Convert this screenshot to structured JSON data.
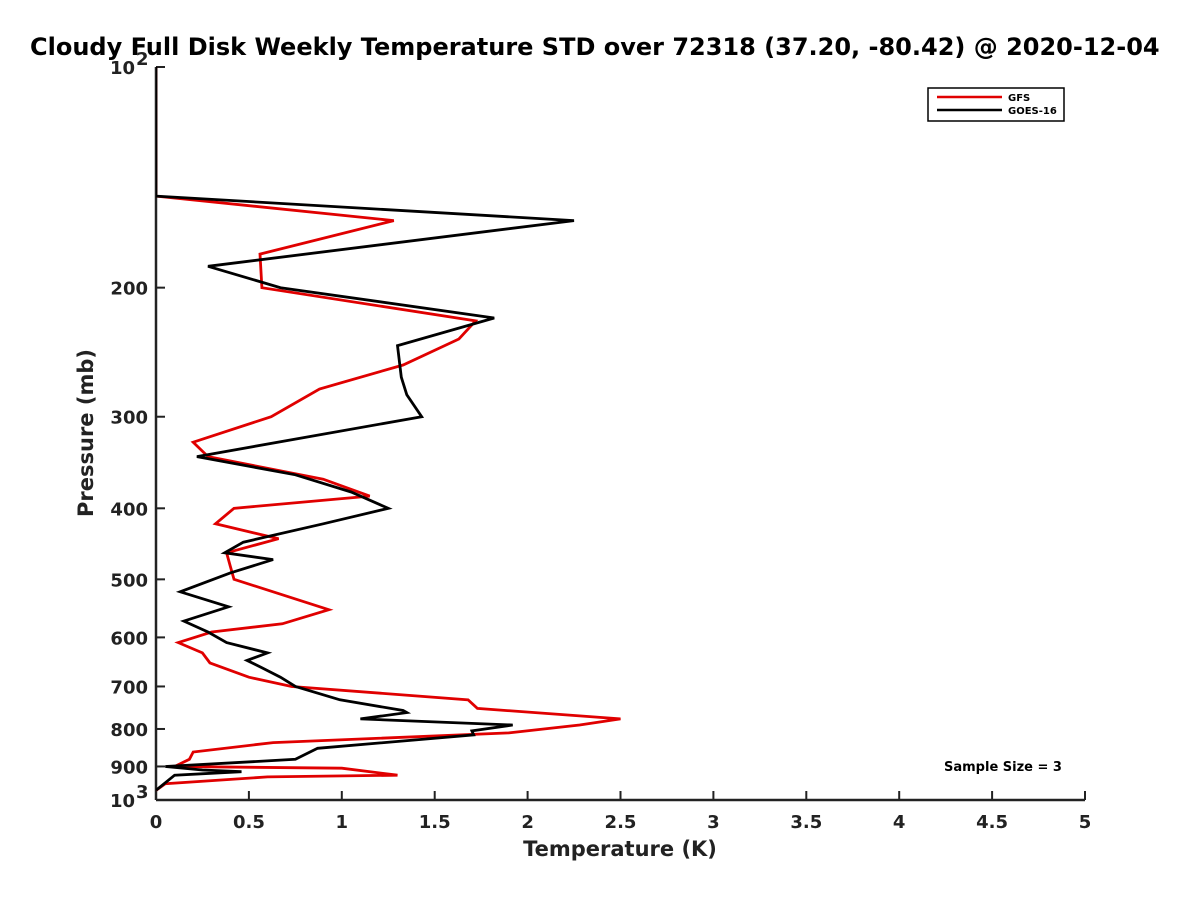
{
  "chart_data": {
    "type": "line",
    "title": "Cloudy Full Disk Weekly Temperature STD over 72318 (37.20, -80.42) @ 2020-12-04",
    "xlabel": "Temperature (K)",
    "ylabel": "Pressure (mb)",
    "xlim": [
      0,
      5
    ],
    "ylim": [
      100,
      1000
    ],
    "yscale": "log",
    "y_reversed": true,
    "x_ticks": [
      "0",
      "0.5",
      "1",
      "1.5",
      "2",
      "2.5",
      "3",
      "3.5",
      "4",
      "4.5",
      "5"
    ],
    "y_ticks": [
      {
        "value": 100,
        "base": "10",
        "exp": "2"
      },
      {
        "value": 200,
        "label": "200"
      },
      {
        "value": 300,
        "label": "300"
      },
      {
        "value": 400,
        "label": "400"
      },
      {
        "value": 500,
        "label": "500"
      },
      {
        "value": 600,
        "label": "600"
      },
      {
        "value": 700,
        "label": "700"
      },
      {
        "value": 800,
        "label": "800"
      },
      {
        "value": 900,
        "label": "900"
      },
      {
        "value": 1000,
        "base": "10",
        "exp": "3"
      }
    ],
    "legend_position": "top-right",
    "annotation": "Sample Size = 3",
    "series": [
      {
        "name": "GFS",
        "color": "#e00000",
        "points": [
          [
            0,
            100
          ],
          [
            0,
            125
          ],
          [
            0,
            150
          ],
          [
            1.28,
            162
          ],
          [
            0.56,
            180
          ],
          [
            0.57,
            200
          ],
          [
            1.72,
            222
          ],
          [
            1.63,
            235
          ],
          [
            1.33,
            255
          ],
          [
            0.88,
            275
          ],
          [
            0.62,
            300
          ],
          [
            0.2,
            325
          ],
          [
            0.28,
            340
          ],
          [
            0.9,
            365
          ],
          [
            1.15,
            385
          ],
          [
            0.42,
            400
          ],
          [
            0.32,
            420
          ],
          [
            0.66,
            440
          ],
          [
            0.38,
            460
          ],
          [
            0.4,
            480
          ],
          [
            0.42,
            500
          ],
          [
            0.93,
            550
          ],
          [
            0.68,
            575
          ],
          [
            0.3,
            590
          ],
          [
            0.12,
            610
          ],
          [
            0.25,
            630
          ],
          [
            0.29,
            650
          ],
          [
            0.5,
            680
          ],
          [
            0.73,
            700
          ],
          [
            1.68,
            730
          ],
          [
            1.73,
            750
          ],
          [
            2.5,
            775
          ],
          [
            2.28,
            790
          ],
          [
            1.9,
            810
          ],
          [
            0.63,
            835
          ],
          [
            0.2,
            860
          ],
          [
            0.18,
            880
          ],
          [
            0.1,
            900
          ],
          [
            1.0,
            905
          ],
          [
            1.3,
            925
          ],
          [
            0.6,
            930
          ],
          [
            0.05,
            950
          ],
          [
            0,
            970
          ]
        ]
      },
      {
        "name": "GOES-16",
        "color": "#000000",
        "points": [
          [
            0,
            100
          ],
          [
            0,
            125
          ],
          [
            0,
            150
          ],
          [
            2.25,
            162
          ],
          [
            0.28,
            187
          ],
          [
            0.67,
            200
          ],
          [
            1.82,
            220
          ],
          [
            1.3,
            240
          ],
          [
            1.32,
            265
          ],
          [
            1.35,
            280
          ],
          [
            1.43,
            300
          ],
          [
            0.22,
            340
          ],
          [
            0.75,
            360
          ],
          [
            1.05,
            380
          ],
          [
            1.25,
            400
          ],
          [
            0.9,
            420
          ],
          [
            0.47,
            445
          ],
          [
            0.37,
            460
          ],
          [
            0.63,
            470
          ],
          [
            0.4,
            490
          ],
          [
            0.13,
            520
          ],
          [
            0.39,
            545
          ],
          [
            0.15,
            570
          ],
          [
            0.28,
            590
          ],
          [
            0.38,
            610
          ],
          [
            0.6,
            630
          ],
          [
            0.49,
            645
          ],
          [
            0.57,
            660
          ],
          [
            0.67,
            680
          ],
          [
            0.75,
            700
          ],
          [
            0.99,
            730
          ],
          [
            1.33,
            755
          ],
          [
            1.35,
            760
          ],
          [
            1.1,
            775
          ],
          [
            1.92,
            790
          ],
          [
            1.7,
            805
          ],
          [
            1.71,
            815
          ],
          [
            0.87,
            850
          ],
          [
            0.75,
            880
          ],
          [
            0.05,
            900
          ],
          [
            0.25,
            910
          ],
          [
            0.46,
            915
          ],
          [
            0.1,
            925
          ],
          [
            0,
            970
          ]
        ]
      }
    ]
  }
}
